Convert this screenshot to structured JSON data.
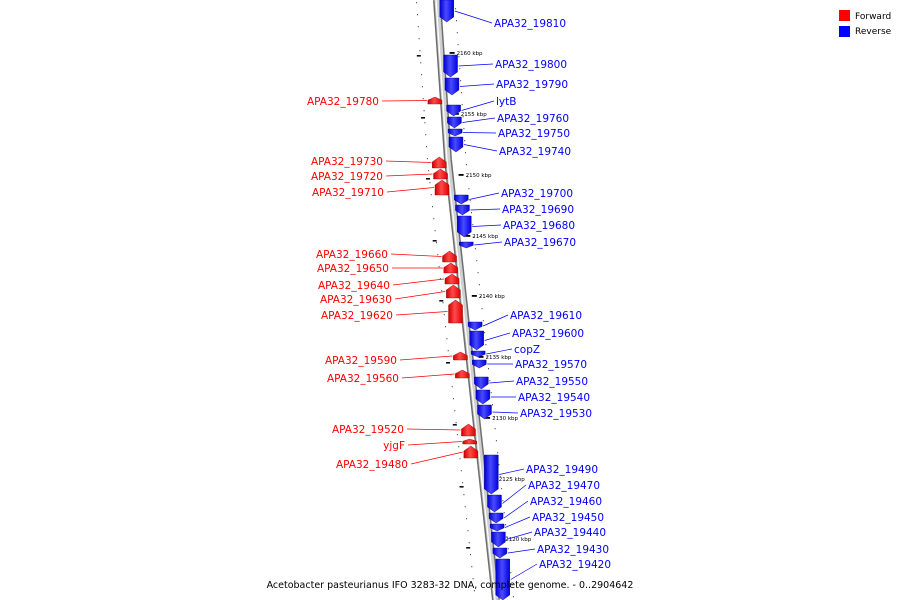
{
  "caption": "Acetobacter pasteurianus IFO 3283-32 DNA, complete genome. - 0..2904642",
  "legend": [
    {
      "label": "Forward",
      "color": "#ff0000"
    },
    {
      "label": "Reverse",
      "color": "#0000ff"
    }
  ],
  "colors": {
    "forward": "#ff0000",
    "reverse": "#0000ff",
    "backbone": "#9a9a9a"
  },
  "position_ticks": [
    "2160 kbp",
    "2155 kbp",
    "2150 kbp",
    "2145 kbp",
    "2140 kbp",
    "2135 kbp",
    "2130 kbp",
    "2125 kbp",
    "2120 kbp"
  ],
  "genes": [
    {
      "label": "APA32_19810",
      "strand": "reverse"
    },
    {
      "label": "APA32_19800",
      "strand": "reverse"
    },
    {
      "label": "APA32_19790",
      "strand": "reverse"
    },
    {
      "label": "APA32_19780",
      "strand": "forward"
    },
    {
      "label": "lytB",
      "strand": "reverse"
    },
    {
      "label": "APA32_19760",
      "strand": "reverse"
    },
    {
      "label": "APA32_19750",
      "strand": "reverse"
    },
    {
      "label": "APA32_19740",
      "strand": "reverse"
    },
    {
      "label": "APA32_19730",
      "strand": "forward"
    },
    {
      "label": "APA32_19720",
      "strand": "forward"
    },
    {
      "label": "APA32_19710",
      "strand": "forward"
    },
    {
      "label": "APA32_19700",
      "strand": "reverse"
    },
    {
      "label": "APA32_19690",
      "strand": "reverse"
    },
    {
      "label": "APA32_19680",
      "strand": "reverse"
    },
    {
      "label": "APA32_19670",
      "strand": "reverse"
    },
    {
      "label": "APA32_19660",
      "strand": "forward"
    },
    {
      "label": "APA32_19650",
      "strand": "forward"
    },
    {
      "label": "APA32_19640",
      "strand": "forward"
    },
    {
      "label": "APA32_19630",
      "strand": "forward"
    },
    {
      "label": "APA32_19620",
      "strand": "forward"
    },
    {
      "label": "APA32_19610",
      "strand": "reverse"
    },
    {
      "label": "APA32_19600",
      "strand": "reverse"
    },
    {
      "label": "copZ",
      "strand": "reverse"
    },
    {
      "label": "APA32_19590",
      "strand": "forward"
    },
    {
      "label": "APA32_19570",
      "strand": "reverse"
    },
    {
      "label": "APA32_19560",
      "strand": "forward"
    },
    {
      "label": "APA32_19550",
      "strand": "reverse"
    },
    {
      "label": "APA32_19540",
      "strand": "reverse"
    },
    {
      "label": "APA32_19530",
      "strand": "reverse"
    },
    {
      "label": "APA32_19520",
      "strand": "forward"
    },
    {
      "label": "yjgF",
      "strand": "forward"
    },
    {
      "label": "APA32_19480",
      "strand": "forward"
    },
    {
      "label": "APA32_19490",
      "strand": "reverse"
    },
    {
      "label": "APA32_19470",
      "strand": "reverse"
    },
    {
      "label": "APA32_19460",
      "strand": "reverse"
    },
    {
      "label": "APA32_19450",
      "strand": "reverse"
    },
    {
      "label": "APA32_19440",
      "strand": "reverse"
    },
    {
      "label": "APA32_19430",
      "strand": "reverse"
    },
    {
      "label": "APA32_19420",
      "strand": "reverse"
    }
  ]
}
